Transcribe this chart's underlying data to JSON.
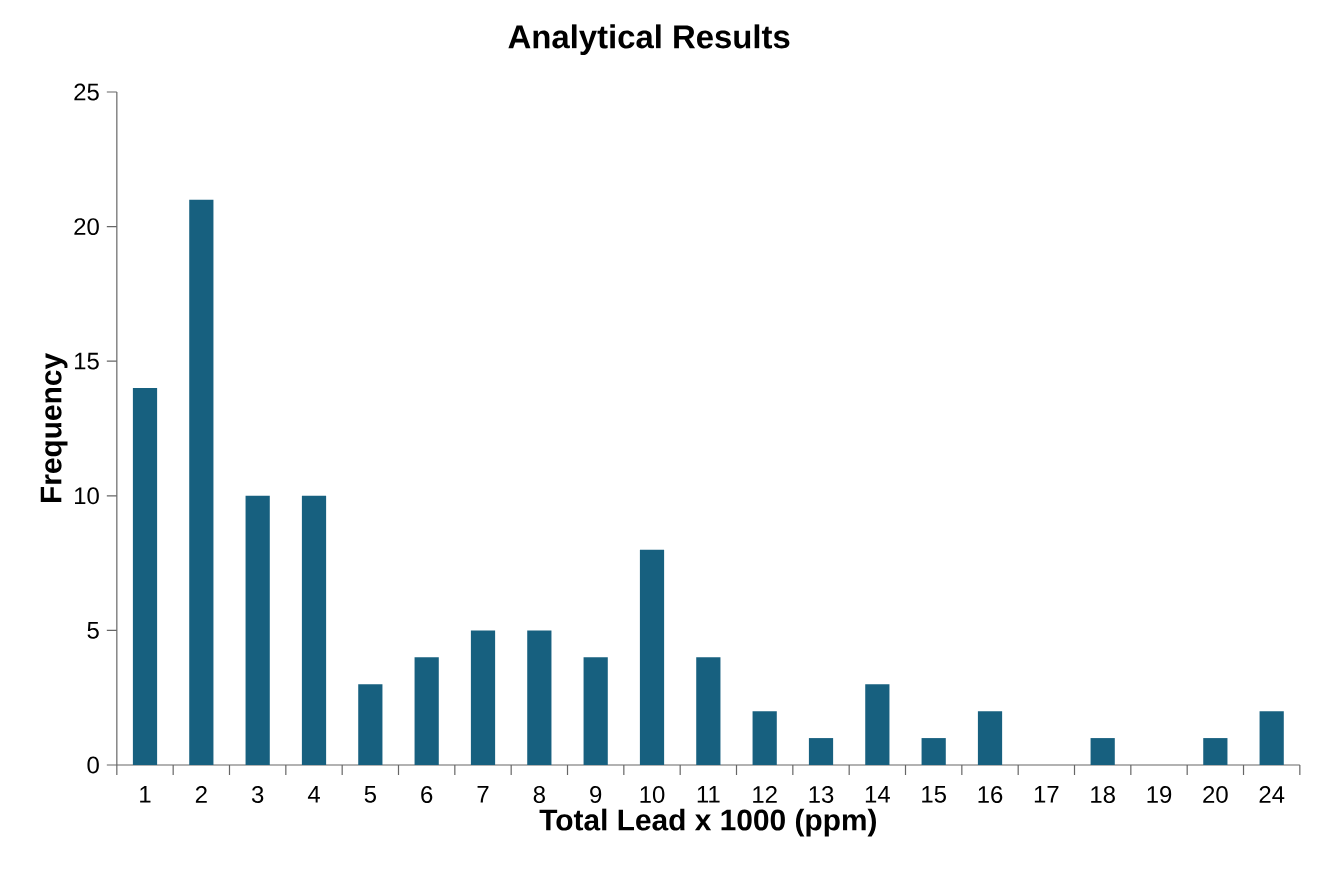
{
  "chart_data": {
    "type": "bar",
    "title": "Analytical Results",
    "xlabel": "Total Lead x 1000 (ppm)",
    "ylabel": "Frequency",
    "categories": [
      "1",
      "2",
      "3",
      "4",
      "5",
      "6",
      "7",
      "8",
      "9",
      "10",
      "11",
      "12",
      "13",
      "14",
      "15",
      "16",
      "17",
      "18",
      "19",
      "20",
      "24"
    ],
    "values": [
      14,
      21,
      10,
      10,
      3,
      4,
      5,
      5,
      4,
      8,
      4,
      2,
      1,
      3,
      1,
      2,
      0,
      1,
      0,
      1,
      2
    ],
    "color": "#17607f",
    "ylim": [
      0,
      25
    ],
    "yticks": [
      0,
      5,
      10,
      15,
      20,
      25
    ]
  }
}
